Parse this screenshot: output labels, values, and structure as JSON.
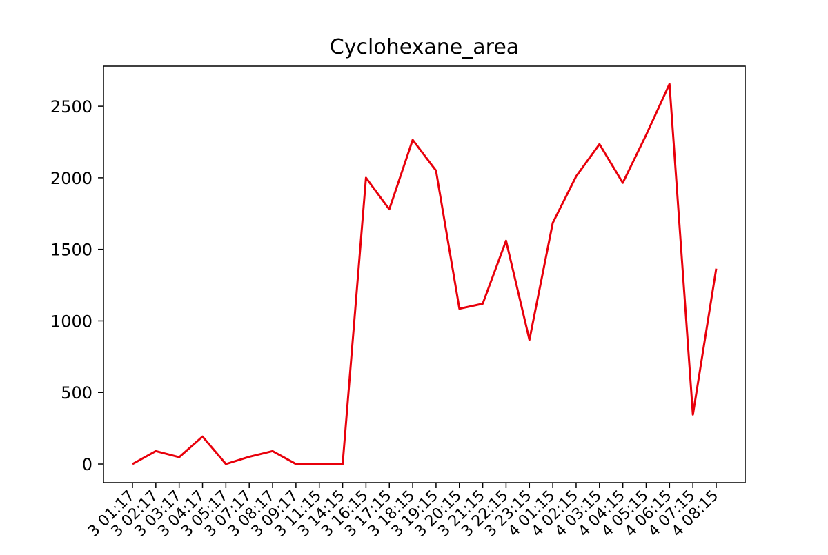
{
  "chart_data": {
    "type": "line",
    "title": "Cyclohexane_area",
    "xlabel": "",
    "ylabel": "",
    "ylim": [
      -130,
      2780
    ],
    "yticks": [
      0,
      500,
      1000,
      1500,
      2000,
      2500
    ],
    "grid": false,
    "series": [
      {
        "color": "#e8000b",
        "values": [
          0,
          90,
          48,
          192,
          0,
          50,
          90,
          0,
          0,
          0,
          2000,
          1780,
          2265,
          2050,
          1085,
          1120,
          1560,
          868,
          1685,
          2010,
          2235,
          1965,
          2300,
          2655,
          345,
          1365
        ]
      }
    ],
    "x_tick_labels": [
      "3 01:17",
      "3 02:17",
      "3 03:17",
      "3 04:17",
      "3 05:17",
      "3 07:17",
      "3 08:17",
      "3 09:17",
      "3 11:15",
      "3 14:15",
      "3 16:15",
      "3 17:15",
      "3 18:15",
      "3 19:15",
      "3 20:15",
      "3 21:15",
      "3 22:15",
      "3 23:15",
      "4 01:15",
      "4 02:15",
      "4 03:15",
      "4 04:15",
      "4 05:15",
      "4 06:15",
      "4 07:15",
      "4 08:15"
    ]
  }
}
